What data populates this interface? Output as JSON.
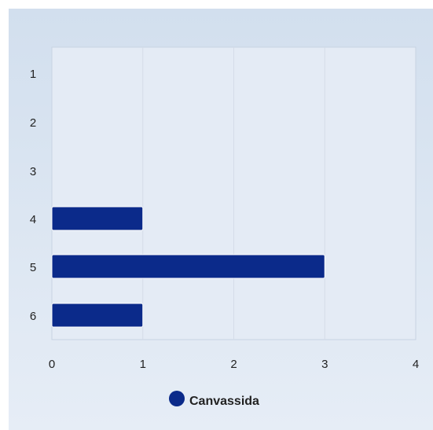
{
  "chart_data": {
    "type": "bar",
    "orientation": "horizontal",
    "categories": [
      "1",
      "2",
      "3",
      "4",
      "5",
      "6"
    ],
    "series": [
      {
        "name": "Canvassida",
        "values": [
          0,
          0,
          0,
          1,
          3,
          1
        ],
        "color": "#0b2a8a"
      }
    ],
    "x_ticks": [
      "0",
      "1",
      "2",
      "3",
      "4"
    ],
    "xlim": [
      0,
      4
    ],
    "title": "",
    "xlabel": "",
    "ylabel": "",
    "grid": "vertical",
    "legend_position": "bottom-center",
    "background_color": "#dbe5f1",
    "plot_background_color": "#e4ebf5"
  }
}
